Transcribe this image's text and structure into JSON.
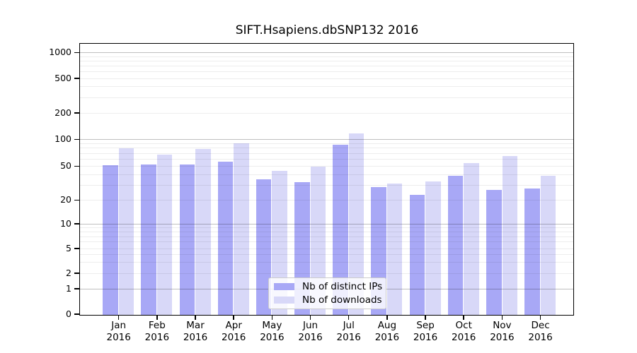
{
  "chart_data": {
    "type": "bar",
    "title": "SIFT.Hsapiens.dbSNP132 2016",
    "categories": [
      "Jan",
      "Feb",
      "Mar",
      "Apr",
      "May",
      "Jun",
      "Jul",
      "Aug",
      "Sep",
      "Oct",
      "Nov",
      "Dec"
    ],
    "category_year": "2016",
    "series": [
      {
        "name": "Nb of distinct IPs",
        "color": "#a8a8f6",
        "values": [
          51,
          52,
          52,
          56,
          35,
          32,
          86,
          28,
          23,
          38,
          26,
          27
        ]
      },
      {
        "name": "Nb of downloads",
        "color": "#d8d8f8",
        "values": [
          79,
          67,
          77,
          89,
          44,
          49,
          117,
          31,
          33,
          54,
          65,
          38
        ]
      }
    ],
    "xlabel": "",
    "ylabel": "",
    "yscale": "symlog",
    "yticks": [
      0,
      1,
      2,
      5,
      10,
      20,
      50,
      100,
      200,
      500,
      1000
    ],
    "ylim": [
      0,
      1260
    ],
    "grid": true,
    "legend_position": "lower center inside"
  }
}
